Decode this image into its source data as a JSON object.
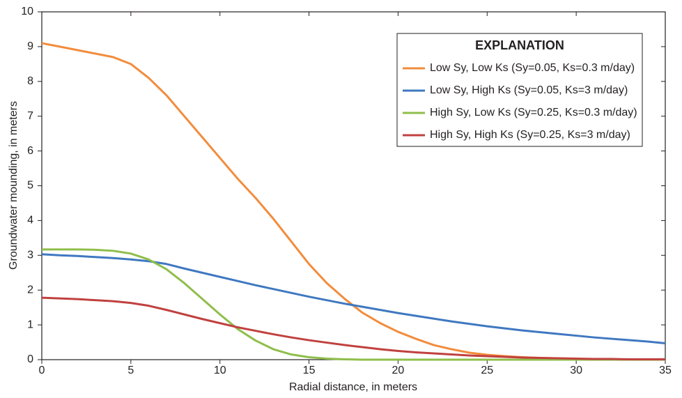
{
  "chart_data": {
    "type": "line",
    "x_label": "Radial distance, in meters",
    "y_label": "Groundwater mounding, in meters",
    "legend_title": "EXPLANATION",
    "legend_position": "upper right",
    "x": [
      0,
      1,
      2,
      3,
      4,
      5,
      6,
      7,
      8,
      9,
      10,
      11,
      12,
      13,
      14,
      15,
      16,
      17,
      18,
      19,
      20,
      21,
      22,
      23,
      24,
      25,
      26,
      27,
      28,
      29,
      30,
      31,
      32,
      33,
      34,
      35
    ],
    "xlim": [
      0,
      35
    ],
    "xticks": [
      0,
      5,
      10,
      15,
      20,
      25,
      30,
      35
    ],
    "ylim": [
      0,
      10
    ],
    "yticks": [
      0,
      1,
      2,
      3,
      4,
      5,
      6,
      7,
      8,
      9,
      10
    ],
    "series": [
      {
        "name": "Low Sy, Low Ks (Sy=0.05, Ks=0.3 m/day)",
        "color": "#f28c3c",
        "values": [
          9.1,
          9.0,
          8.9,
          8.8,
          8.7,
          8.5,
          8.1,
          7.6,
          7.0,
          6.4,
          5.8,
          5.2,
          4.65,
          4.05,
          3.4,
          2.75,
          2.2,
          1.75,
          1.35,
          1.05,
          0.8,
          0.6,
          0.42,
          0.3,
          0.2,
          0.14,
          0.1,
          0.07,
          0.05,
          0.03,
          0.02,
          0.01,
          0.01,
          0.01,
          0.01,
          0.01
        ]
      },
      {
        "name": "Low Sy, High Ks (Sy=0.05, Ks=3 m/day)",
        "color": "#3f78c0",
        "values": [
          3.03,
          3.0,
          2.98,
          2.95,
          2.92,
          2.88,
          2.83,
          2.75,
          2.62,
          2.5,
          2.38,
          2.26,
          2.14,
          2.03,
          1.92,
          1.81,
          1.71,
          1.61,
          1.52,
          1.43,
          1.34,
          1.26,
          1.18,
          1.1,
          1.03,
          0.96,
          0.9,
          0.84,
          0.79,
          0.74,
          0.69,
          0.64,
          0.6,
          0.56,
          0.52,
          0.47
        ]
      },
      {
        "name": "High Sy, Low Ks (Sy=0.25, Ks=0.3 m/day)",
        "color": "#8fbe4a",
        "values": [
          3.17,
          3.17,
          3.17,
          3.16,
          3.13,
          3.05,
          2.88,
          2.6,
          2.2,
          1.75,
          1.3,
          0.88,
          0.55,
          0.3,
          0.15,
          0.07,
          0.03,
          0.01,
          0,
          0,
          0,
          0,
          0,
          0,
          0,
          0,
          0,
          0,
          0,
          0,
          0,
          0,
          0,
          0,
          0,
          0
        ]
      },
      {
        "name": "High Sy, High Ks (Sy=0.25, Ks=3 m/day)",
        "color": "#c0413f",
        "values": [
          1.78,
          1.76,
          1.74,
          1.71,
          1.68,
          1.63,
          1.55,
          1.43,
          1.3,
          1.17,
          1.05,
          0.93,
          0.83,
          0.73,
          0.64,
          0.56,
          0.49,
          0.42,
          0.36,
          0.3,
          0.25,
          0.21,
          0.18,
          0.15,
          0.12,
          0.1,
          0.08,
          0.06,
          0.05,
          0.04,
          0.03,
          0.02,
          0.02,
          0.01,
          0.01,
          0.01
        ]
      }
    ]
  }
}
